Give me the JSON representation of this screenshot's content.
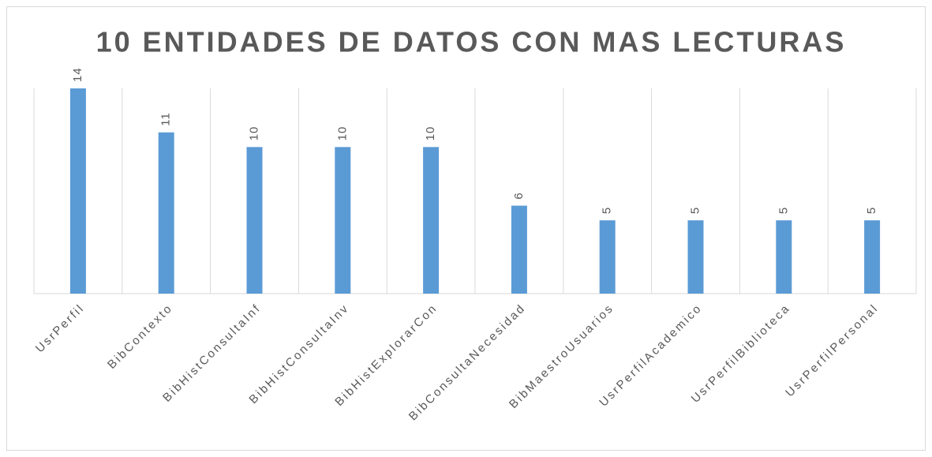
{
  "chart_data": {
    "type": "bar",
    "title": "10 ENTIDADES DE DATOS CON MAS LECTURAS",
    "categories": [
      "UsrPerfil",
      "BibContexto",
      "BibHistConsultaInf",
      "BibHistConsultaInv",
      "BibHistExplorarCon",
      "BibConsultaNecesidad",
      "BibMaestroUsuarios",
      "UsrPerfilAcademico",
      "UsrPerfilBiblioteca",
      "UsrPerfilPersonal"
    ],
    "values": [
      14,
      11,
      10,
      10,
      10,
      6,
      5,
      5,
      5,
      5
    ],
    "color": "#5b9bd5",
    "ylim": [
      0,
      14
    ]
  }
}
